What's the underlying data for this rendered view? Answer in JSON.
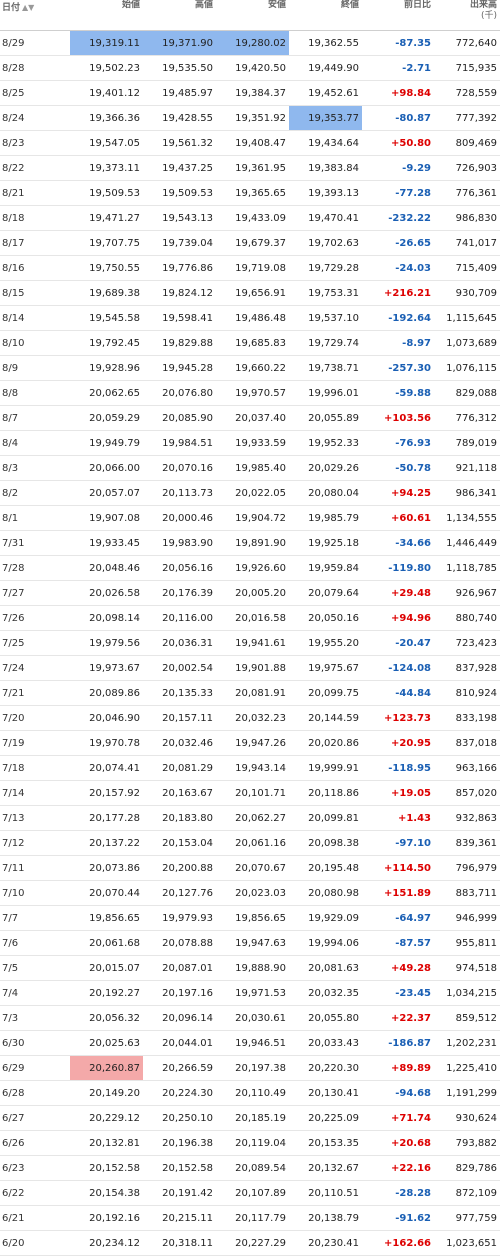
{
  "headers": {
    "date": "日付",
    "open": "始値",
    "high": "高値",
    "low": "安値",
    "close": "終値",
    "change": "前日比",
    "volume": "出来高",
    "volume_unit": "(千)"
  },
  "rows": [
    {
      "date": "8/29",
      "open": "19,319.11",
      "high": "19,371.90",
      "low": "19,280.02",
      "close": "19,362.55",
      "change": "-87.35",
      "volume": "772,640"
    },
    {
      "date": "8/28",
      "open": "19,502.23",
      "high": "19,535.50",
      "low": "19,420.50",
      "close": "19,449.90",
      "change": "-2.71",
      "volume": "715,935"
    },
    {
      "date": "8/25",
      "open": "19,401.12",
      "high": "19,485.97",
      "low": "19,384.37",
      "close": "19,452.61",
      "change": "+98.84",
      "volume": "728,559"
    },
    {
      "date": "8/24",
      "open": "19,366.36",
      "high": "19,428.55",
      "low": "19,351.92",
      "close": "19,353.77",
      "change": "-80.87",
      "volume": "777,392"
    },
    {
      "date": "8/23",
      "open": "19,547.05",
      "high": "19,561.32",
      "low": "19,408.47",
      "close": "19,434.64",
      "change": "+50.80",
      "volume": "809,469"
    },
    {
      "date": "8/22",
      "open": "19,373.11",
      "high": "19,437.25",
      "low": "19,361.95",
      "close": "19,383.84",
      "change": "-9.29",
      "volume": "726,903"
    },
    {
      "date": "8/21",
      "open": "19,509.53",
      "high": "19,509.53",
      "low": "19,365.65",
      "close": "19,393.13",
      "change": "-77.28",
      "volume": "776,361"
    },
    {
      "date": "8/18",
      "open": "19,471.27",
      "high": "19,543.13",
      "low": "19,433.09",
      "close": "19,470.41",
      "change": "-232.22",
      "volume": "986,830"
    },
    {
      "date": "8/17",
      "open": "19,707.75",
      "high": "19,739.04",
      "low": "19,679.37",
      "close": "19,702.63",
      "change": "-26.65",
      "volume": "741,017"
    },
    {
      "date": "8/16",
      "open": "19,750.55",
      "high": "19,776.86",
      "low": "19,719.08",
      "close": "19,729.28",
      "change": "-24.03",
      "volume": "715,409"
    },
    {
      "date": "8/15",
      "open": "19,689.38",
      "high": "19,824.12",
      "low": "19,656.91",
      "close": "19,753.31",
      "change": "+216.21",
      "volume": "930,709"
    },
    {
      "date": "8/14",
      "open": "19,545.58",
      "high": "19,598.41",
      "low": "19,486.48",
      "close": "19,537.10",
      "change": "-192.64",
      "volume": "1,115,645"
    },
    {
      "date": "8/10",
      "open": "19,792.45",
      "high": "19,829.88",
      "low": "19,685.83",
      "close": "19,729.74",
      "change": "-8.97",
      "volume": "1,073,689"
    },
    {
      "date": "8/9",
      "open": "19,928.96",
      "high": "19,945.28",
      "low": "19,660.22",
      "close": "19,738.71",
      "change": "-257.30",
      "volume": "1,076,115"
    },
    {
      "date": "8/8",
      "open": "20,062.65",
      "high": "20,076.80",
      "low": "19,970.57",
      "close": "19,996.01",
      "change": "-59.88",
      "volume": "829,088"
    },
    {
      "date": "8/7",
      "open": "20,059.29",
      "high": "20,085.90",
      "low": "20,037.40",
      "close": "20,055.89",
      "change": "+103.56",
      "volume": "776,312"
    },
    {
      "date": "8/4",
      "open": "19,949.79",
      "high": "19,984.51",
      "low": "19,933.59",
      "close": "19,952.33",
      "change": "-76.93",
      "volume": "789,019"
    },
    {
      "date": "8/3",
      "open": "20,066.00",
      "high": "20,070.16",
      "low": "19,985.40",
      "close": "20,029.26",
      "change": "-50.78",
      "volume": "921,118"
    },
    {
      "date": "8/2",
      "open": "20,057.07",
      "high": "20,113.73",
      "low": "20,022.05",
      "close": "20,080.04",
      "change": "+94.25",
      "volume": "986,341"
    },
    {
      "date": "8/1",
      "open": "19,907.08",
      "high": "20,000.46",
      "low": "19,904.72",
      "close": "19,985.79",
      "change": "+60.61",
      "volume": "1,134,555"
    },
    {
      "date": "7/31",
      "open": "19,933.45",
      "high": "19,983.90",
      "low": "19,891.90",
      "close": "19,925.18",
      "change": "-34.66",
      "volume": "1,446,449"
    },
    {
      "date": "7/28",
      "open": "20,048.46",
      "high": "20,056.16",
      "low": "19,926.60",
      "close": "19,959.84",
      "change": "-119.80",
      "volume": "1,118,785"
    },
    {
      "date": "7/27",
      "open": "20,026.58",
      "high": "20,176.39",
      "low": "20,005.20",
      "close": "20,079.64",
      "change": "+29.48",
      "volume": "926,967"
    },
    {
      "date": "7/26",
      "open": "20,098.14",
      "high": "20,116.00",
      "low": "20,016.58",
      "close": "20,050.16",
      "change": "+94.96",
      "volume": "880,740"
    },
    {
      "date": "7/25",
      "open": "19,979.56",
      "high": "20,036.31",
      "low": "19,941.61",
      "close": "19,955.20",
      "change": "-20.47",
      "volume": "723,423"
    },
    {
      "date": "7/24",
      "open": "19,973.67",
      "high": "20,002.54",
      "low": "19,901.88",
      "close": "19,975.67",
      "change": "-124.08",
      "volume": "837,928"
    },
    {
      "date": "7/21",
      "open": "20,089.86",
      "high": "20,135.33",
      "low": "20,081.91",
      "close": "20,099.75",
      "change": "-44.84",
      "volume": "810,924"
    },
    {
      "date": "7/20",
      "open": "20,046.90",
      "high": "20,157.11",
      "low": "20,032.23",
      "close": "20,144.59",
      "change": "+123.73",
      "volume": "833,198"
    },
    {
      "date": "7/19",
      "open": "19,970.78",
      "high": "20,032.46",
      "low": "19,947.26",
      "close": "20,020.86",
      "change": "+20.95",
      "volume": "837,018"
    },
    {
      "date": "7/18",
      "open": "20,074.41",
      "high": "20,081.29",
      "low": "19,943.14",
      "close": "19,999.91",
      "change": "-118.95",
      "volume": "963,166"
    },
    {
      "date": "7/14",
      "open": "20,157.92",
      "high": "20,163.67",
      "low": "20,101.71",
      "close": "20,118.86",
      "change": "+19.05",
      "volume": "857,020"
    },
    {
      "date": "7/13",
      "open": "20,177.28",
      "high": "20,183.80",
      "low": "20,062.27",
      "close": "20,099.81",
      "change": "+1.43",
      "volume": "932,863"
    },
    {
      "date": "7/12",
      "open": "20,137.22",
      "high": "20,153.04",
      "low": "20,061.16",
      "close": "20,098.38",
      "change": "-97.10",
      "volume": "839,361"
    },
    {
      "date": "7/11",
      "open": "20,073.86",
      "high": "20,200.88",
      "low": "20,070.67",
      "close": "20,195.48",
      "change": "+114.50",
      "volume": "796,979"
    },
    {
      "date": "7/10",
      "open": "20,070.44",
      "high": "20,127.76",
      "low": "20,023.03",
      "close": "20,080.98",
      "change": "+151.89",
      "volume": "883,711"
    },
    {
      "date": "7/7",
      "open": "19,856.65",
      "high": "19,979.93",
      "low": "19,856.65",
      "close": "19,929.09",
      "change": "-64.97",
      "volume": "946,999"
    },
    {
      "date": "7/6",
      "open": "20,061.68",
      "high": "20,078.88",
      "low": "19,947.63",
      "close": "19,994.06",
      "change": "-87.57",
      "volume": "955,811"
    },
    {
      "date": "7/5",
      "open": "20,015.07",
      "high": "20,087.01",
      "low": "19,888.90",
      "close": "20,081.63",
      "change": "+49.28",
      "volume": "974,518"
    },
    {
      "date": "7/4",
      "open": "20,192.27",
      "high": "20,197.16",
      "low": "19,971.53",
      "close": "20,032.35",
      "change": "-23.45",
      "volume": "1,034,215"
    },
    {
      "date": "7/3",
      "open": "20,056.32",
      "high": "20,096.14",
      "low": "20,030.61",
      "close": "20,055.80",
      "change": "+22.37",
      "volume": "859,512"
    },
    {
      "date": "6/30",
      "open": "20,025.63",
      "high": "20,044.01",
      "low": "19,946.51",
      "close": "20,033.43",
      "change": "-186.87",
      "volume": "1,202,231"
    },
    {
      "date": "6/29",
      "open": "20,260.87",
      "high": "20,266.59",
      "low": "20,197.38",
      "close": "20,220.30",
      "change": "+89.89",
      "volume": "1,225,410"
    },
    {
      "date": "6/28",
      "open": "20,149.20",
      "high": "20,224.30",
      "low": "20,110.49",
      "close": "20,130.41",
      "change": "-94.68",
      "volume": "1,191,299"
    },
    {
      "date": "6/27",
      "open": "20,229.12",
      "high": "20,250.10",
      "low": "20,185.19",
      "close": "20,225.09",
      "change": "+71.74",
      "volume": "930,624"
    },
    {
      "date": "6/26",
      "open": "20,132.81",
      "high": "20,196.38",
      "low": "20,119.04",
      "close": "20,153.35",
      "change": "+20.68",
      "volume": "793,882"
    },
    {
      "date": "6/23",
      "open": "20,152.58",
      "high": "20,152.58",
      "low": "20,089.54",
      "close": "20,132.67",
      "change": "+22.16",
      "volume": "829,786"
    },
    {
      "date": "6/22",
      "open": "20,154.38",
      "high": "20,191.42",
      "low": "20,107.89",
      "close": "20,110.51",
      "change": "-28.28",
      "volume": "872,109"
    },
    {
      "date": "6/21",
      "open": "20,192.16",
      "high": "20,215.11",
      "low": "20,117.79",
      "close": "20,138.79",
      "change": "-91.62",
      "volume": "977,759"
    },
    {
      "date": "6/20",
      "open": "20,234.12",
      "high": "20,318.11",
      "low": "20,227.29",
      "close": "20,230.41",
      "change": "+162.66",
      "volume": "1,023,651"
    }
  ],
  "highlights": {
    "blue": [
      [
        0,
        "open"
      ],
      [
        0,
        "high"
      ],
      [
        0,
        "low"
      ],
      [
        3,
        "close"
      ]
    ],
    "red": [
      [
        41,
        "open"
      ],
      [
        49,
        "high"
      ],
      [
        49,
        "low"
      ],
      [
        49,
        "close"
      ]
    ]
  },
  "colors": {
    "positive": "#dd0000",
    "negative": "#1a5fb4",
    "highlight_blue": "#8fb8ee",
    "highlight_red": "#f4a9a9"
  }
}
